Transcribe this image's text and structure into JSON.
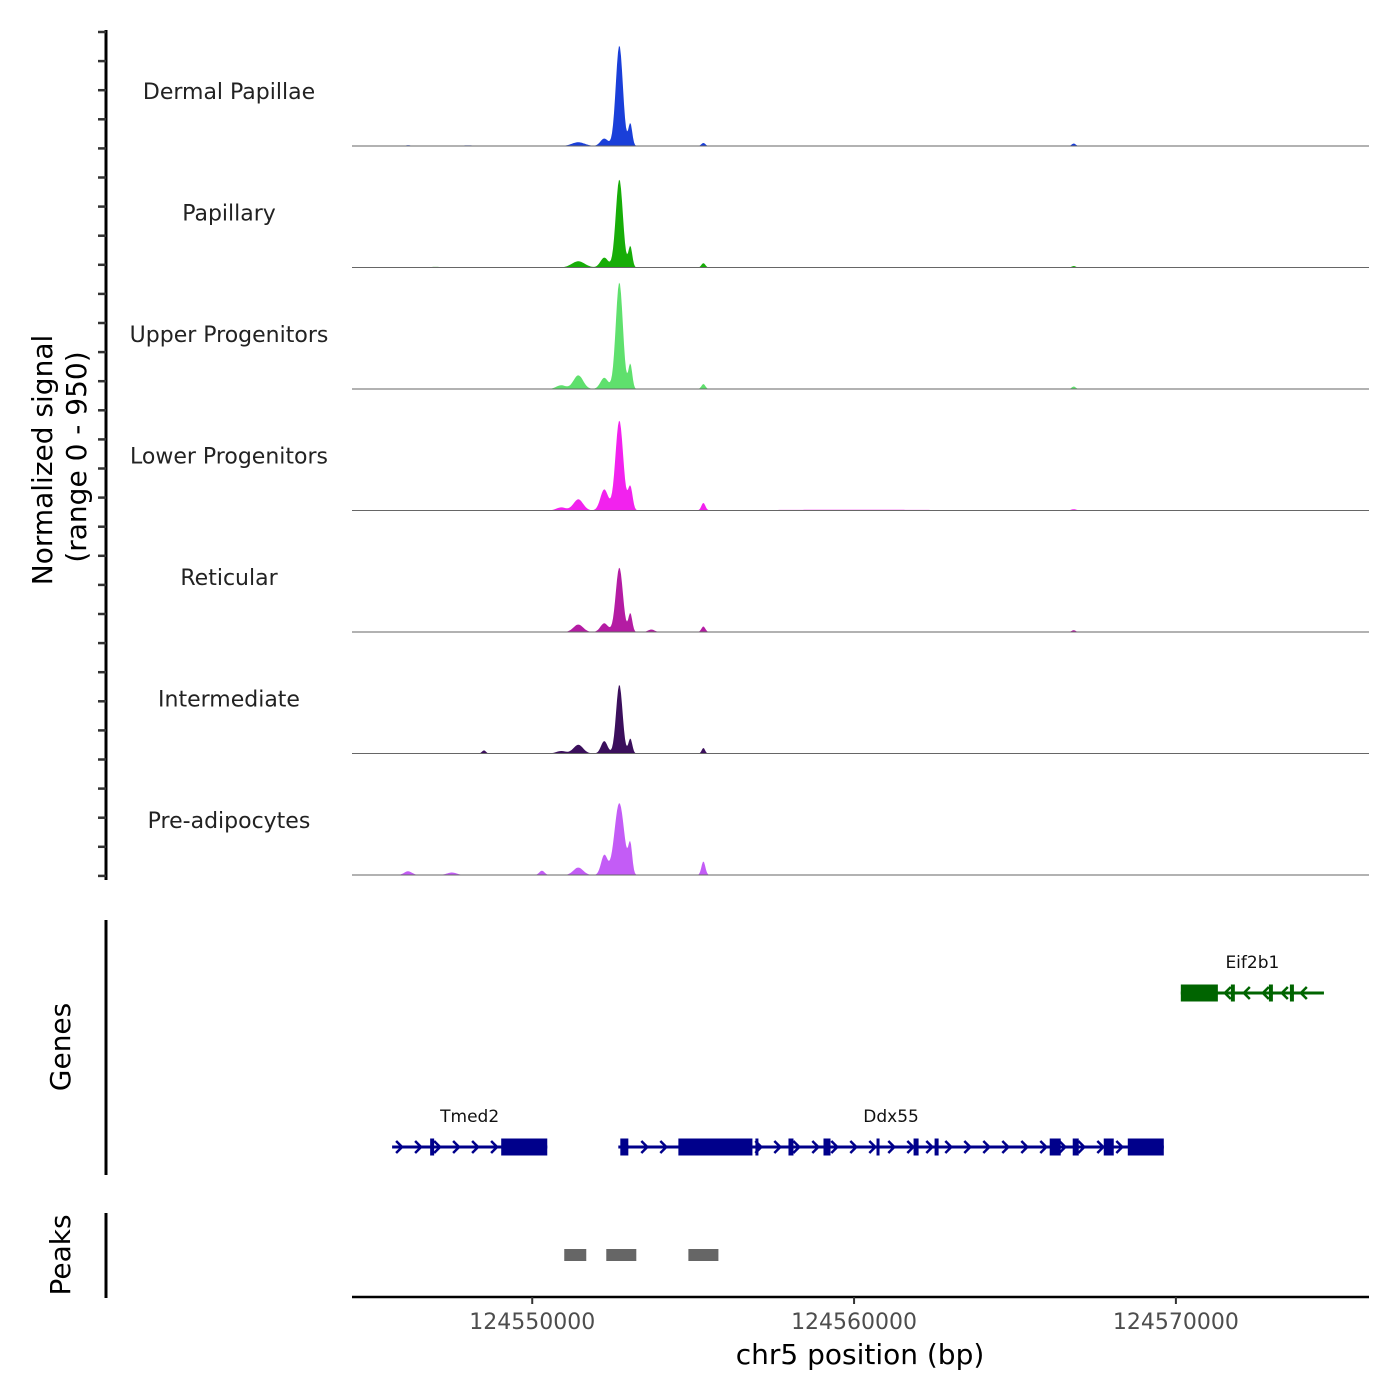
{
  "chart_data": {
    "type": "area",
    "xlabel": "chr5 position (bp)",
    "ylabel": "Normalized signal",
    "ylabel_sub": "(range 0 - 950)",
    "xlim": [
      124544400,
      124576000
    ],
    "ylim": [
      0,
      950
    ],
    "xticks": [
      124550000,
      124560000,
      124570000
    ],
    "xtick_labels": [
      "124550000",
      "124560000",
      "124570000"
    ],
    "tracks": [
      {
        "name": "Dermal Papillae",
        "color": "#1a3fd9",
        "peaks": [
          [
            124552706,
            810,
            110
          ],
          [
            124553048,
            180,
            60
          ],
          [
            124552239,
            60,
            120
          ],
          [
            124551431,
            30,
            200
          ],
          [
            124555318,
            25,
            60
          ],
          [
            124566825,
            20,
            60
          ],
          [
            124546144,
            6,
            80
          ],
          [
            124548000,
            5,
            200
          ]
        ]
      },
      {
        "name": "Papillary",
        "color": "#17ad08",
        "peaks": [
          [
            124552706,
            710,
            110
          ],
          [
            124553048,
            170,
            60
          ],
          [
            124552239,
            80,
            120
          ],
          [
            124551431,
            50,
            200
          ],
          [
            124555318,
            35,
            60
          ],
          [
            124566825,
            12,
            60
          ],
          [
            124547000,
            5,
            200
          ]
        ]
      },
      {
        "name": "Upper Progenitors",
        "color": "#5fe06d",
        "peaks": [
          [
            124552706,
            860,
            110
          ],
          [
            124553048,
            200,
            60
          ],
          [
            124552239,
            90,
            120
          ],
          [
            124551431,
            110,
            150
          ],
          [
            124555318,
            40,
            60
          ],
          [
            124566825,
            20,
            60
          ],
          [
            124550900,
            30,
            150
          ]
        ]
      },
      {
        "name": "Lower Progenitors",
        "color": "#f222ee",
        "peaks": [
          [
            124552706,
            725,
            120
          ],
          [
            124553048,
            190,
            70
          ],
          [
            124552239,
            170,
            120
          ],
          [
            124551431,
            90,
            150
          ],
          [
            124555318,
            60,
            60
          ],
          [
            124566825,
            10,
            80
          ],
          [
            124550900,
            25,
            150
          ],
          [
            124560000,
            6,
            3000
          ]
        ]
      },
      {
        "name": "Reticular",
        "color": "#b41ca3",
        "peaks": [
          [
            124552706,
            520,
            110
          ],
          [
            124553048,
            150,
            60
          ],
          [
            124552239,
            70,
            120
          ],
          [
            124551431,
            60,
            150
          ],
          [
            124555318,
            45,
            60
          ],
          [
            124566825,
            15,
            60
          ],
          [
            124553700,
            20,
            100
          ]
        ]
      },
      {
        "name": "Intermediate",
        "color": "#3b0f5c",
        "peaks": [
          [
            124552706,
            555,
            100
          ],
          [
            124553048,
            120,
            60
          ],
          [
            124552239,
            100,
            100
          ],
          [
            124551431,
            70,
            150
          ],
          [
            124555318,
            45,
            50
          ],
          [
            124548500,
            25,
            60
          ],
          [
            124550900,
            20,
            150
          ]
        ]
      },
      {
        "name": "Pre-adipocytes",
        "color": "#c35cf6",
        "peaks": [
          [
            124552706,
            580,
            150
          ],
          [
            124553048,
            230,
            60
          ],
          [
            124552239,
            160,
            100
          ],
          [
            124551431,
            60,
            150
          ],
          [
            124555318,
            110,
            60
          ],
          [
            124546144,
            30,
            120
          ],
          [
            124550300,
            35,
            80
          ],
          [
            124547500,
            20,
            150
          ]
        ]
      }
    ],
    "genes_label": "Genes",
    "genes": [
      {
        "name": "Tmed2",
        "strand": "+",
        "start": 124545646,
        "end": 124550467,
        "color": "#00008b",
        "row": 2,
        "exons": [
          [
            124546828,
            124546952
          ],
          [
            124549036,
            124550467
          ]
        ]
      },
      {
        "name": "Ddx55",
        "strand": "+",
        "start": 124552675,
        "end": 124569624,
        "color": "#00008b",
        "row": 2,
        "exons": [
          [
            124552737,
            124552986
          ],
          [
            124554541,
            124556842
          ],
          [
            124556935,
            124556998
          ],
          [
            124557962,
            124558117
          ],
          [
            124559050,
            124559268
          ],
          [
            124560698,
            124560792
          ],
          [
            124561849,
            124562005
          ],
          [
            124562502,
            124562627
          ],
          [
            124566079,
            124566421
          ],
          [
            124566794,
            124566981
          ],
          [
            124567758,
            124568069
          ],
          [
            124568505,
            124569624
          ]
        ]
      },
      {
        "name": "Eif2b1",
        "strand": "-",
        "start": 124570153,
        "end": 124574600,
        "color": "#006400",
        "row": 1,
        "exons": [
          [
            124570153,
            124571304
          ],
          [
            124571708,
            124571832
          ],
          [
            124572890,
            124573014
          ],
          [
            124573543,
            124573667
          ]
        ]
      }
    ],
    "peaks_label": "Peaks",
    "peaks_color": "#666666",
    "peak_regions": [
      [
        124550995,
        124551679
      ],
      [
        124552301,
        124553234
      ],
      [
        124554852,
        124555785
      ]
    ]
  }
}
